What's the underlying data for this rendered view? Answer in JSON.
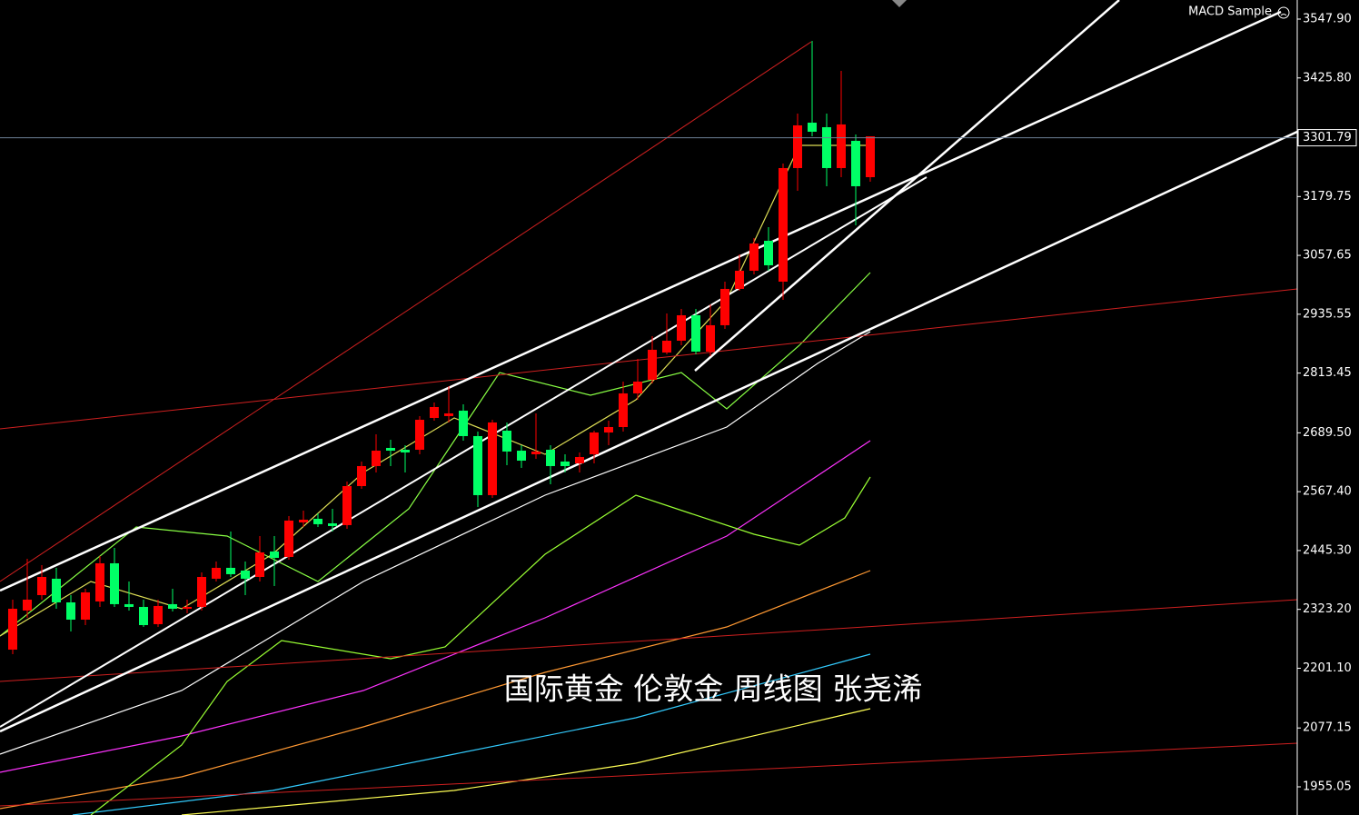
{
  "chart_data": {
    "type": "candlestick",
    "indicator_label": "MACD Sample",
    "watermark": "国际黄金 伦敦金 周线图 张尧浠",
    "up_color": "#ff0000",
    "down_color": "#00ff66",
    "current_price": 3301.79,
    "ylim": [
      1896.6,
      3587.5
    ],
    "yticks": [
      {
        "value": 3547.9,
        "label": "3547.90"
      },
      {
        "value": 3425.8,
        "label": "3425.80"
      },
      3179.75,
      3057.65,
      2935.55,
      2813.45,
      {
        "value": 2689.5,
        "label": "2689.50"
      },
      {
        "value": 2567.4,
        "label": "2567.40"
      },
      {
        "value": 2445.3,
        "label": "2445.30"
      },
      {
        "value": 2323.2,
        "label": "2323.20"
      },
      {
        "value": 2201.1,
        "label": "2201.10"
      },
      2077.15,
      1955.05
    ],
    "open": [
      2239.7,
      2320.8,
      2352.8,
      2386.8,
      2337.7,
      2301.9,
      2339.6,
      2418.8,
      2334.0,
      2328.3,
      2292.5,
      2334.0,
      2324.5,
      2328.3,
      2386.8,
      2409.4,
      2403.7,
      2390.5,
      2443.3,
      2432.0,
      2503.6,
      2511.2,
      2501.7,
      2498.0,
      2579.0,
      2620.5,
      2658.2,
      2654.4,
      2654.4,
      2720.4,
      2724.2,
      2735.5,
      2682.7,
      2560.2,
      2694.0,
      2652.5,
      2645.0,
      2654.4,
      2629.9,
      2626.1,
      2645.0,
      2690.2,
      2701.5,
      2771.3,
      2799.6,
      2856.1,
      2880.6,
      2933.4,
      2858.0,
      2912.7,
      2988.1,
      3025.8,
      3088.0,
      3003.1,
      3238.8,
      3333.0,
      3323.6,
      3238.8,
      3295.3,
      3219.9
    ],
    "high": [
      2343.4,
      2428.2,
      2415.0,
      2409.4,
      2352.8,
      2366.0,
      2433.9,
      2450.8,
      2381.1,
      2343.4,
      2343.4,
      2366.0,
      2343.4,
      2399.9,
      2422.6,
      2484.8,
      2422.6,
      2475.3,
      2475.3,
      2516.8,
      2528.1,
      2522.5,
      2531.9,
      2588.4,
      2629.9,
      2686.5,
      2675.2,
      2663.8,
      2724.2,
      2752.4,
      2786.4,
      2748.7,
      2692.1,
      2716.6,
      2711.0,
      2663.8,
      2729.8,
      2663.8,
      2645.0,
      2648.8,
      2694.0,
      2714.7,
      2795.8,
      2842.9,
      2890.0,
      2937.2,
      2946.6,
      2946.6,
      2956.0,
      3003.1,
      3059.7,
      3093.6,
      3116.2,
      3248.2,
      3351.9,
      3502.7,
      3351.9,
      3440.5,
      3308.5,
      3304.7
    ],
    "low": [
      2230.3,
      2305.7,
      2343.4,
      2324.5,
      2277.4,
      2290.6,
      2328.3,
      2328.3,
      2320.8,
      2286.8,
      2286.8,
      2318.9,
      2315.1,
      2320.8,
      2381.1,
      2390.5,
      2352.8,
      2381.1,
      2371.7,
      2426.3,
      2494.2,
      2494.2,
      2484.8,
      2490.4,
      2573.4,
      2607.3,
      2620.5,
      2607.3,
      2645.0,
      2714.7,
      2711.0,
      2673.3,
      2535.7,
      2554.5,
      2622.4,
      2616.7,
      2635.6,
      2582.8,
      2607.3,
      2607.3,
      2626.1,
      2663.8,
      2692.1,
      2758.1,
      2792.0,
      2852.3,
      2871.2,
      2852.3,
      2848.6,
      2905.1,
      2984.3,
      3018.2,
      3025.8,
      2965.4,
      3191.6,
      3304.7,
      3201.1,
      3219.9,
      3120.0,
      3210.5
    ],
    "close": [
      2324.5,
      2343.4,
      2390.5,
      2337.7,
      2301.9,
      2358.5,
      2418.8,
      2334.0,
      2328.3,
      2290.6,
      2330.2,
      2324.5,
      2328.3,
      2390.5,
      2409.4,
      2396.2,
      2386.8,
      2441.4,
      2430.1,
      2507.4,
      2509.3,
      2499.9,
      2496.1,
      2579.0,
      2620.5,
      2652.5,
      2652.5,
      2648.8,
      2716.6,
      2743.0,
      2729.8,
      2682.7,
      2560.2,
      2711.0,
      2650.7,
      2631.8,
      2650.7,
      2620.5,
      2620.5,
      2639.3,
      2690.2,
      2701.5,
      2771.3,
      2795.8,
      2861.8,
      2880.6,
      2933.4,
      2858.0,
      2912.7,
      2988.1,
      3025.8,
      3082.3,
      3037.1,
      3238.8,
      3327.4,
      3314.2,
      3238.8,
      3329.3,
      3201.1,
      3304.7
    ]
  }
}
